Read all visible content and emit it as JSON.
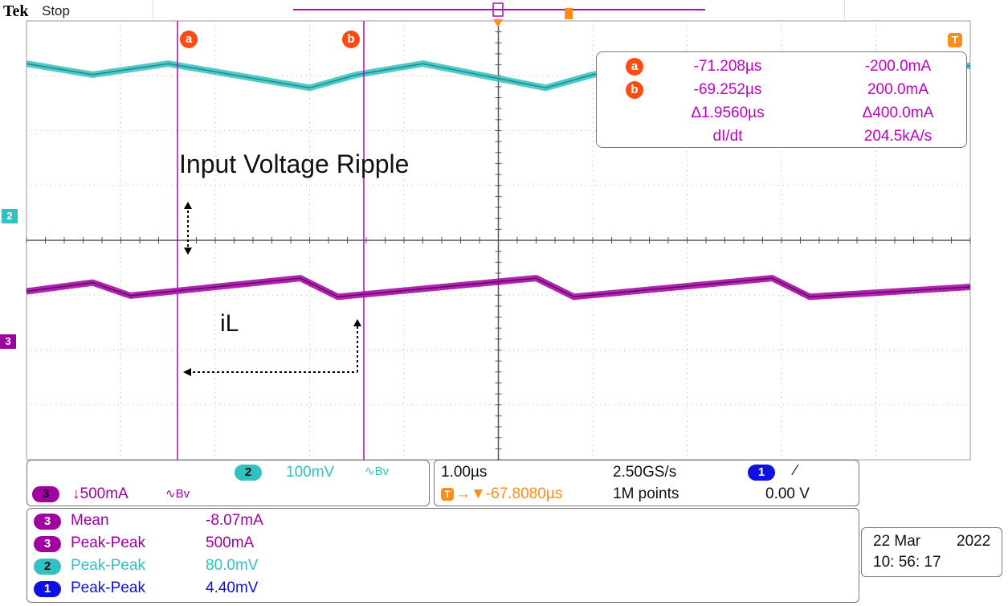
{
  "header": {
    "brand": "Tek",
    "status": "Stop"
  },
  "colors": {
    "ch2": "#33c0c0",
    "ch3": "#a000a0",
    "ch1": "#1010e0",
    "cursor": "#c000c0",
    "cursor_label": "#ff4a12",
    "trigger": "#ff8c1a"
  },
  "annotations": {
    "ripple": "Input Voltage Ripple",
    "current": "iL"
  },
  "cursors": {
    "a": {
      "label": "a",
      "time": "-71.208µs",
      "value": "-200.0mA"
    },
    "b": {
      "label": "b",
      "time": "-69.252µs",
      "value": "200.0mA"
    },
    "delta_time": "Δ1.9560µs",
    "delta_value": "Δ400.0mA",
    "rate_label": "dI/dt",
    "rate_value": "204.5kA/s"
  },
  "markers": {
    "trigger": "T",
    "ch2": "2",
    "ch3": "3"
  },
  "channels": {
    "ch2": {
      "number": "2",
      "scale": "100mV",
      "bw": "∿Bv"
    },
    "ch3": {
      "number": "3",
      "scale": "↓500mA",
      "bw": "∿Bv"
    }
  },
  "timebase": {
    "scale": "1.00µs",
    "sample_rate": "2.50GS/s",
    "trigger_pos": "→▼-67.8080µs",
    "record": "1M points",
    "trigger_channel": "1",
    "trigger_slope": "∕",
    "trigger_level": "0.00 V"
  },
  "measurements": [
    {
      "ch": "3",
      "name": "Mean",
      "value": "-8.07mA",
      "color": "#a000a0",
      "pill": "#a000a0"
    },
    {
      "ch": "3",
      "name": "Peak-Peak",
      "value": "500mA",
      "color": "#a000a0",
      "pill": "#a000a0"
    },
    {
      "ch": "2",
      "name": "Peak-Peak",
      "value": "80.0mV",
      "color": "#33c0c0",
      "pill": "#33c0c0"
    },
    {
      "ch": "1",
      "name": "Peak-Peak",
      "value": "4.40mV",
      "color": "#1010e0",
      "pill": "#1010e0"
    }
  ],
  "datetime": {
    "date": "22 Mar",
    "year": "2022",
    "time": "10: 56: 17"
  },
  "chart_data": {
    "type": "line",
    "xlabel": "",
    "ylabel": "",
    "time_per_div_us": 1.0,
    "x_range_us": [
      -72.0,
      -62.0
    ],
    "series": [
      {
        "channel": "2",
        "period_us": 2.5,
        "x_us": [
          -72.0,
          -71.3,
          -70.5,
          -69.0,
          -68.5,
          -67.8,
          -66.5,
          -66.0,
          -65.3,
          -64.0,
          -63.5,
          -62.8,
          -62.0
        ],
        "y_div": [
          2.3,
          1.8,
          2.3,
          1.2,
          1.8,
          2.3,
          1.2,
          1.8,
          2.3,
          1.2,
          1.8,
          2.3,
          2.2
        ]
      },
      {
        "channel": "3",
        "period_us": 2.5,
        "x_us": [
          -72.0,
          -71.3,
          -70.9,
          -69.1,
          -68.7,
          -66.6,
          -66.2,
          -64.1,
          -63.7,
          -62.0
        ],
        "y_div": [
          -0.2,
          0.2,
          -0.4,
          0.4,
          -0.45,
          0.4,
          -0.45,
          0.4,
          -0.45,
          0.0
        ]
      }
    ]
  }
}
